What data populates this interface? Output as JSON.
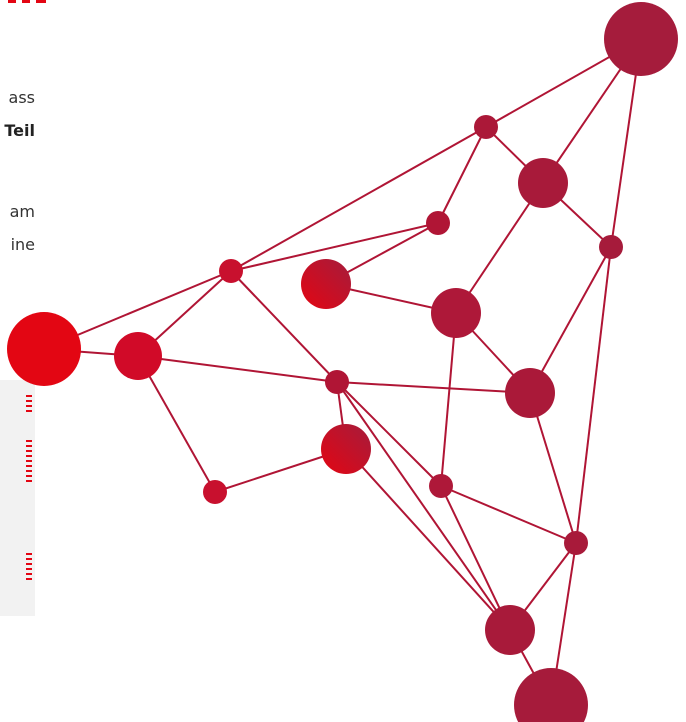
{
  "text": {
    "fragment_1": "ass",
    "fragment_2": "Teil",
    "fragment_3": "am",
    "fragment_4": "ine"
  },
  "colors": {
    "accent_red": "#e30613",
    "network_crimson": "#b01535",
    "panel_gray": "#f2f2f2"
  },
  "decoration": {
    "network_icon": "molecular-network-graphic"
  }
}
